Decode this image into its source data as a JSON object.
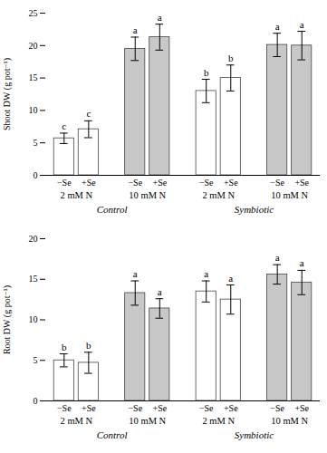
{
  "chart_data": [
    {
      "type": "bar",
      "categories": [
        "−Se",
        "+Se",
        "−Se",
        "+Se",
        "−Se",
        "+Se",
        "−Se",
        "+Se"
      ],
      "subgroups": [
        "2 mM N",
        "2 mM N",
        "10 mM N",
        "10 mM N",
        "2 mM N",
        "2 mM N",
        "10 mM N",
        "10 mM N"
      ],
      "groups": [
        "Control",
        "Control",
        "Control",
        "Control",
        "Symbiotic",
        "Symbiotic",
        "Symbiotic",
        "Symbiotic"
      ],
      "values": [
        5.7,
        7.1,
        19.5,
        21.3,
        13.0,
        15.0,
        20.1,
        20.0
      ],
      "errors": [
        0.8,
        1.3,
        1.8,
        2.0,
        1.8,
        2.0,
        1.8,
        2.2
      ],
      "annotations": [
        "c",
        "c",
        "a",
        "a",
        "b",
        "b",
        "a",
        "a"
      ],
      "colors": [
        "white",
        "white",
        "#c8c8c8",
        "#c8c8c8",
        "white",
        "white",
        "#c8c8c8",
        "#c8c8c8"
      ],
      "ylim": [
        0,
        25
      ],
      "yticks": [
        0,
        5,
        10,
        15,
        20,
        25
      ],
      "ylabel": "Shoot DW (g pot⁻¹)",
      "grid": false
    },
    {
      "type": "bar",
      "categories": [
        "−Se",
        "+Se",
        "−Se",
        "+Se",
        "−Se",
        "+Se",
        "−Se",
        "+Se"
      ],
      "subgroups": [
        "2 mM N",
        "2 mM N",
        "10 mM N",
        "10 mM N",
        "2 mM N",
        "2 mM N",
        "10 mM N",
        "10 mM N"
      ],
      "groups": [
        "Control",
        "Control",
        "Control",
        "Control",
        "Symbiotic",
        "Symbiotic",
        "Symbiotic",
        "Symbiotic"
      ],
      "values": [
        5.0,
        4.7,
        13.3,
        11.4,
        13.5,
        12.5,
        15.6,
        14.6
      ],
      "errors": [
        0.8,
        1.3,
        1.5,
        1.2,
        1.3,
        1.8,
        1.2,
        1.5
      ],
      "annotations": [
        "b",
        "b",
        "a",
        "a",
        "a",
        "a",
        "a",
        "a"
      ],
      "colors": [
        "white",
        "white",
        "#c8c8c8",
        "#c8c8c8",
        "white",
        "white",
        "#c8c8c8",
        "#c8c8c8"
      ],
      "ylim": [
        0,
        20
      ],
      "yticks": [
        0,
        5,
        10,
        15,
        20
      ],
      "ylabel": "Root DW (g pot⁻¹)",
      "grid": false
    }
  ]
}
